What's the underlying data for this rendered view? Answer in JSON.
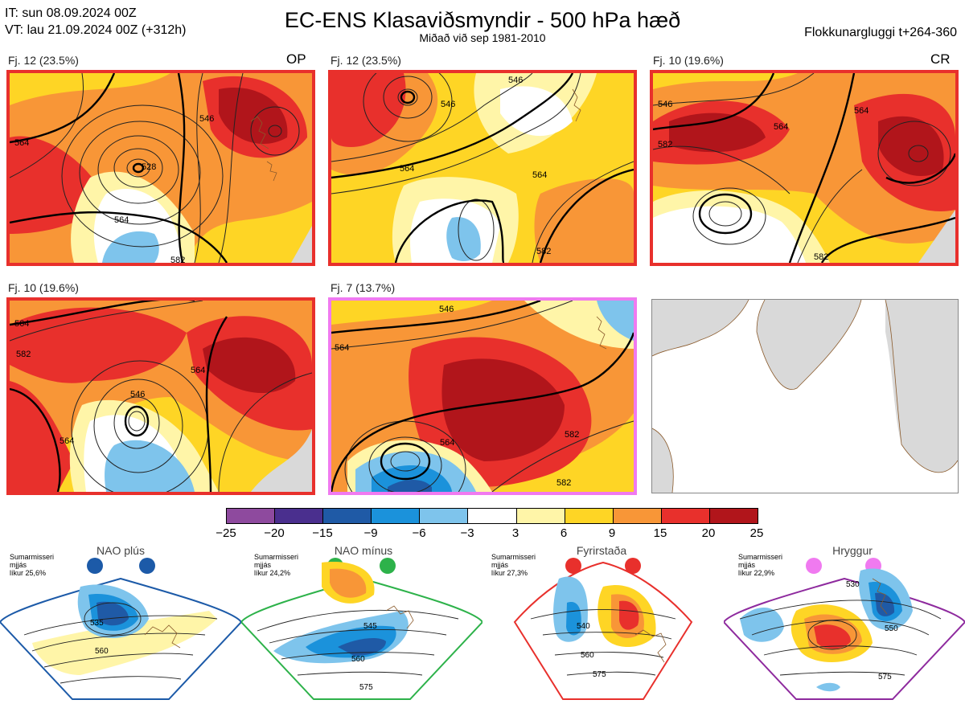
{
  "header": {
    "it_line": "IT: sun 08.09.2024 00Z",
    "vt_line": "VT: lau 21.09.2024 00Z  (+312h)",
    "title": "EC-ENS Klasaviðsmyndir - 500 hPa hæð",
    "subtitle": "Miðað við sep 1981-2010",
    "window": "Flokkunargluggi t+264-360"
  },
  "panels": [
    {
      "label": "Fj. 12 (23.5%)",
      "tag": "OP",
      "border": "#e8302c",
      "contours": [
        "564",
        "528",
        "564",
        "546",
        "582"
      ]
    },
    {
      "label": "Fj. 12 (23.5%)",
      "tag": "",
      "border": "#e8302c",
      "contours": [
        "546",
        "564",
        "564",
        "582",
        "546"
      ]
    },
    {
      "label": "Fj. 10 (19.6%)",
      "tag": "CR",
      "border": "#e8302c",
      "contours": [
        "546",
        "564",
        "582",
        "564",
        "582"
      ]
    },
    {
      "label": "Fj. 10 (19.6%)",
      "tag": "",
      "border": "#e8302c",
      "contours": [
        "564",
        "582",
        "546",
        "564",
        "564"
      ]
    },
    {
      "label": "Fj. 7 (13.7%)",
      "tag": "",
      "border": "#f07af0",
      "contours": [
        "546",
        "564",
        "564",
        "582",
        "582"
      ]
    }
  ],
  "colorbar": {
    "labels": [
      "−25",
      "−20",
      "−15",
      "−9",
      "−6",
      "−3",
      "3",
      "6",
      "9",
      "15",
      "20",
      "25"
    ],
    "colors": [
      "#8e4a9e",
      "#4a2f8e",
      "#1f5aa6",
      "#1b92db",
      "#7ec4ec",
      "#ffffff",
      "#fff5a8",
      "#fed525",
      "#f89637",
      "#e8302c",
      "#b1151b"
    ]
  },
  "climatology": [
    {
      "name": "NAO plús",
      "note": [
        "Sumarmisseri",
        "mjjás",
        "líkur 25,6%"
      ],
      "color": "#1c5aa8",
      "contours": [
        "535",
        "560"
      ]
    },
    {
      "name": "NAO mínus",
      "note": [
        "Sumarmisseri",
        "mjjás",
        "líkur 24,2%"
      ],
      "color": "#2db24a",
      "contours": [
        "545",
        "560",
        "575"
      ]
    },
    {
      "name": "Fyrirstaða",
      "note": [
        "Sumarmisseri",
        "mjjás",
        "líkur 27,3%"
      ],
      "color": "#e8302c",
      "contours": [
        "540",
        "560",
        "575"
      ]
    },
    {
      "name": "Hryggur",
      "note": [
        "Sumarmisseri",
        "mjjás",
        "líkur 22,9%"
      ],
      "color": "#f07af0",
      "contours": [
        "530",
        "550",
        "575"
      ]
    }
  ]
}
